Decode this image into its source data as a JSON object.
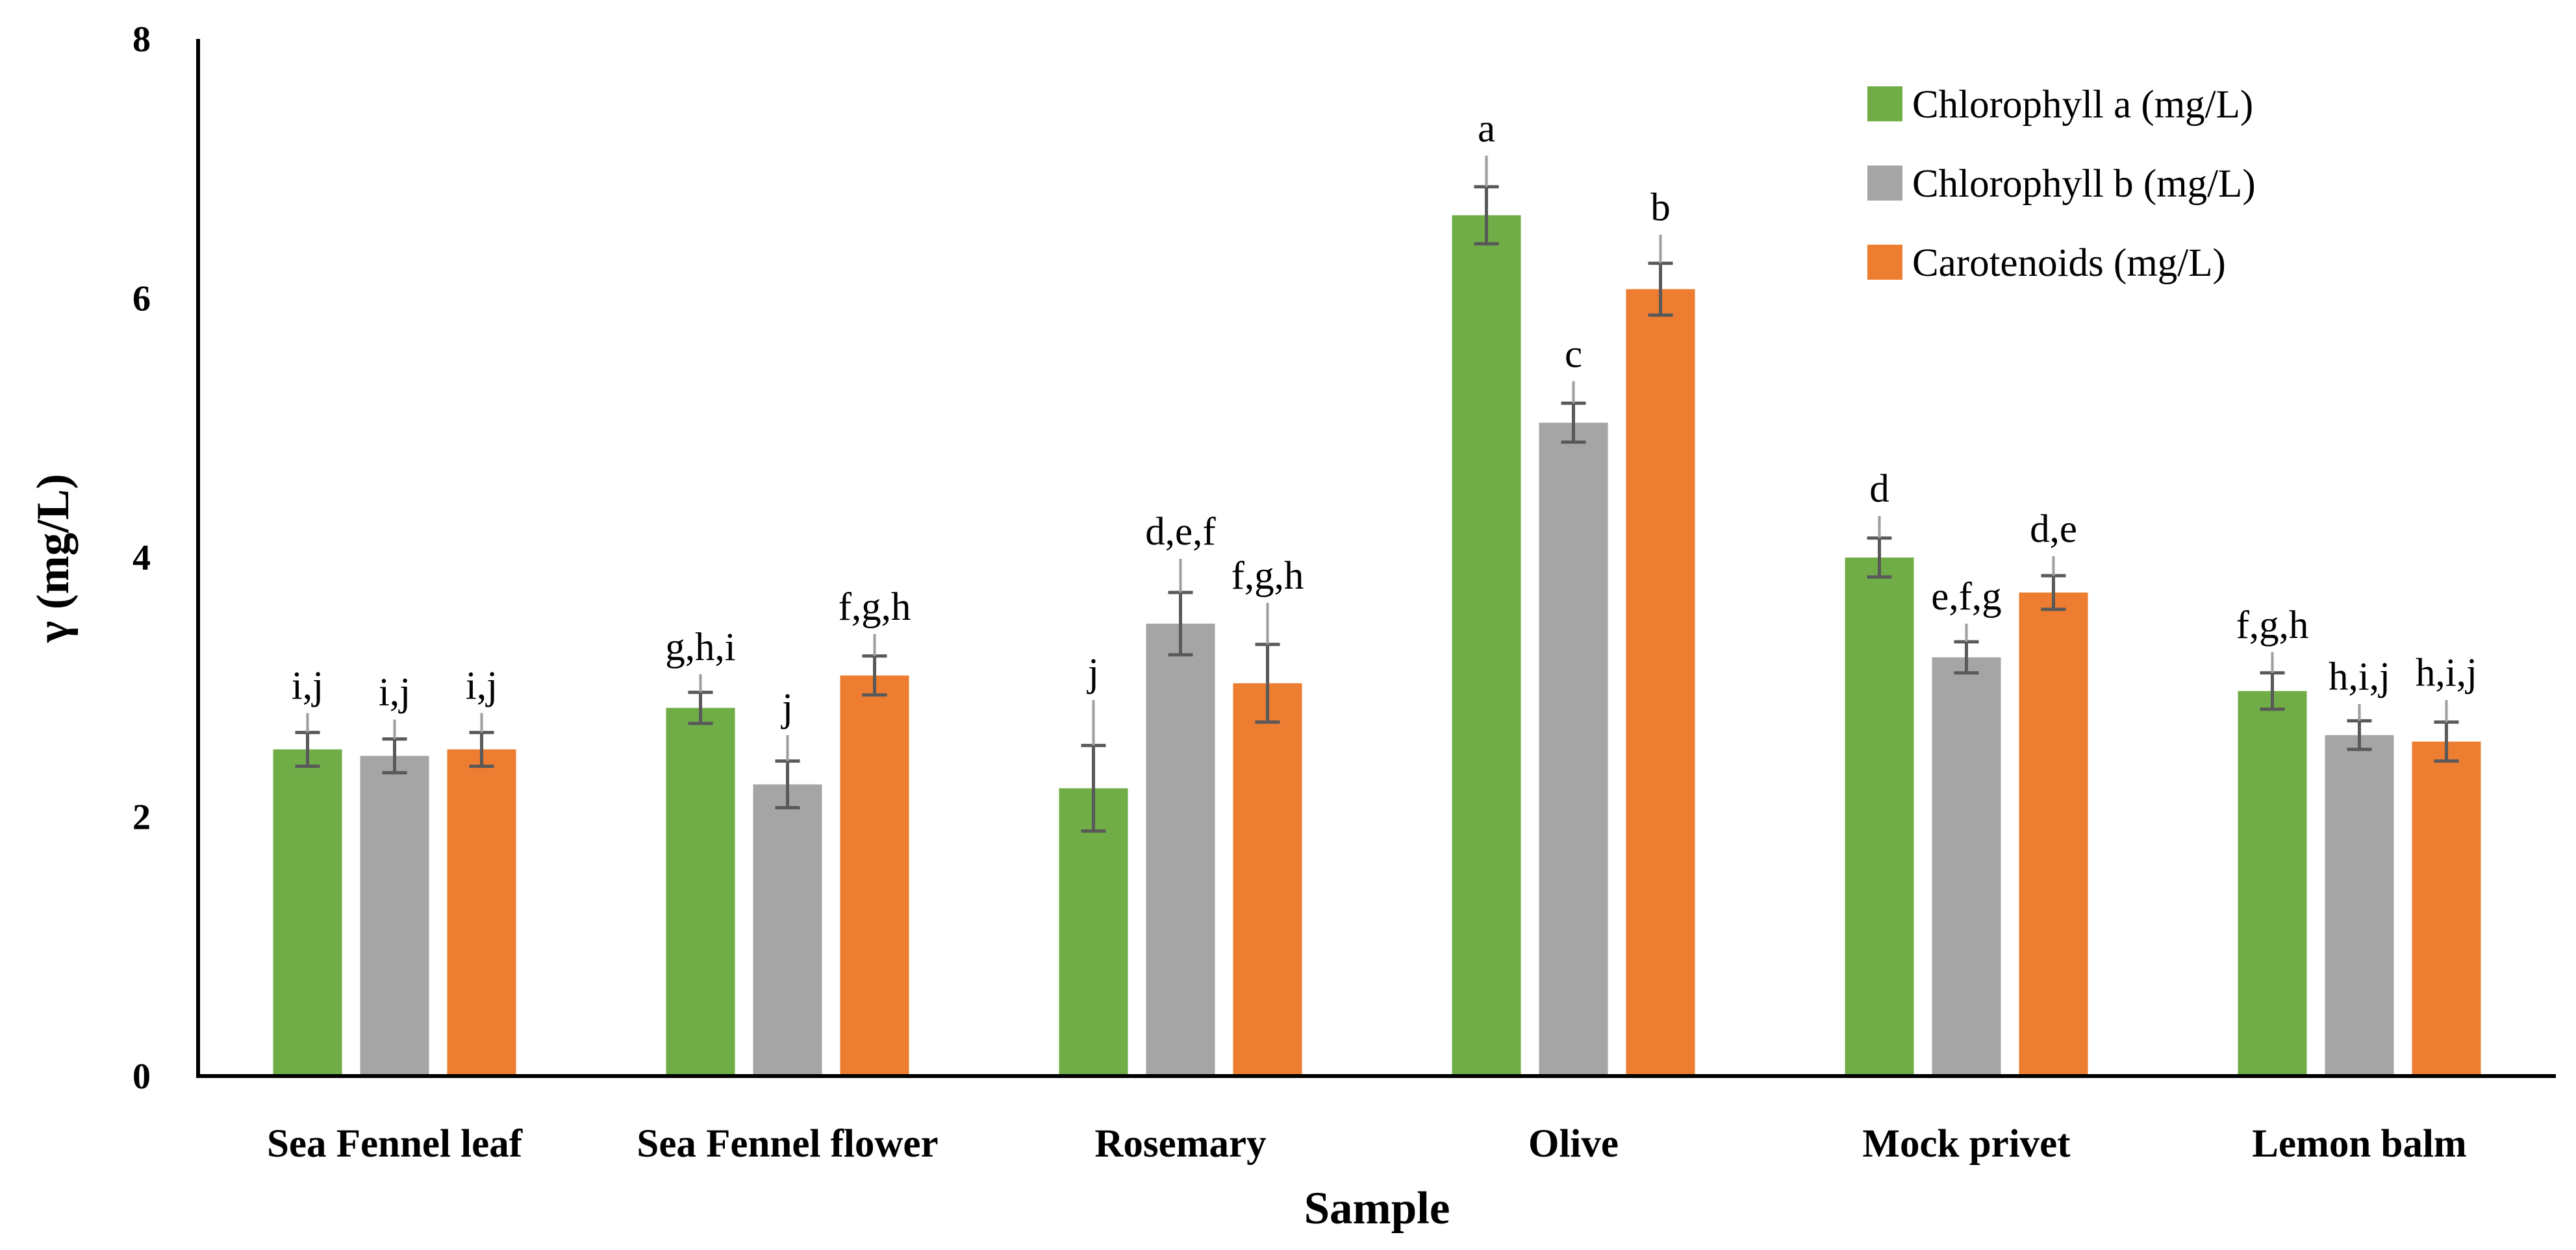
{
  "chart_data": {
    "type": "bar",
    "title": "",
    "xlabel": "Sample",
    "ylabel": "γ (mg/L)",
    "ylim": [
      0,
      8
    ],
    "yticks": [
      0,
      2,
      4,
      6,
      8
    ],
    "grid": false,
    "legend_position": "top-right",
    "categories": [
      "Sea Fennel leaf",
      "Sea Fennel flower",
      "Rosemary",
      "Olive",
      "Mock privet",
      "Lemon balm"
    ],
    "series": [
      {
        "name": "Chlorophyll a (mg/L)",
        "color": "#70AD47",
        "values": [
          2.52,
          2.84,
          2.22,
          6.64,
          4.0,
          2.97
        ],
        "errors": [
          0.13,
          0.12,
          0.33,
          0.22,
          0.15,
          0.14
        ],
        "labels": [
          "i,j",
          "g,h,i",
          "j",
          "a",
          "d",
          "f,g,h"
        ]
      },
      {
        "name": "Chlorophyll b (mg/L)",
        "color": "#A5A5A5",
        "values": [
          2.47,
          2.25,
          3.49,
          5.04,
          3.23,
          2.63
        ],
        "errors": [
          0.13,
          0.18,
          0.24,
          0.15,
          0.12,
          0.11
        ],
        "labels": [
          "i,j",
          "j",
          "d,e,f",
          "c",
          "e,f,g",
          "h,i,j"
        ]
      },
      {
        "name": "Carotenoids (mg/L)",
        "color": "#ED7D31",
        "values": [
          2.52,
          3.09,
          3.03,
          6.07,
          3.73,
          2.58
        ],
        "errors": [
          0.13,
          0.15,
          0.3,
          0.2,
          0.13,
          0.15
        ],
        "labels": [
          "i,j",
          "f,g,h",
          "f,g,h",
          "b",
          "d,e",
          "h,i,j"
        ]
      }
    ]
  }
}
